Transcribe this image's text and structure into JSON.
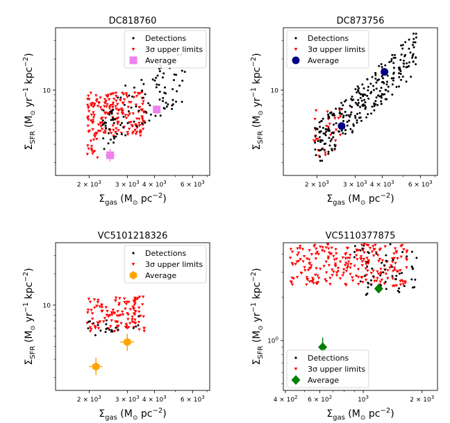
{
  "figure": {
    "x_axis_label": "Σ_gas (M_⊙ pc^-2)",
    "y_axis_label": "Σ_SFR (M_⊙ yr^-1 kpc^-2)"
  },
  "legend_labels": {
    "detections": "Detections",
    "upper_limits": "3σ upper limits",
    "average": "Average"
  },
  "chart_data": [
    {
      "type": "scatter",
      "title": "DC818760",
      "xscale": "log",
      "yscale": "log",
      "xlim": [
        1400,
        7200
      ],
      "ylim": [
        1.5,
        40
      ],
      "xticks": [
        {
          "v": 2000,
          "m": "2",
          "e": "3"
        },
        {
          "v": 3000,
          "m": "3",
          "e": "3"
        },
        {
          "v": 4000,
          "m": "4",
          "e": "3"
        },
        {
          "v": 6000,
          "m": "6",
          "e": "3"
        }
      ],
      "yticks": [
        {
          "v": 10,
          "label": "10"
        }
      ],
      "legend_loc": "top-right",
      "legend_order": [
        "detections",
        "upper_limits",
        "average"
      ],
      "average_color": "#ee82ee",
      "average_marker": "square",
      "averages": [
        {
          "x": 4100,
          "y": 6.5,
          "xerr": 120,
          "yerr_lo": 0.6,
          "yerr_hi": 0.6
        },
        {
          "x": 2500,
          "y": 2.35,
          "xerr": 120,
          "yerr_lo": 0.3,
          "yerr_hi": 0.35
        }
      ],
      "detections": {
        "n": 110,
        "xmin": 2300,
        "xmax": 5600,
        "slope": 2.6,
        "y_at_xmin": 4.6,
        "y_at_xmax": 14,
        "scatter": 0.25
      },
      "upper_limits": {
        "n": 190,
        "xmin": 1960,
        "xmax": 3600,
        "ymin": 3.6,
        "ymax": 9.5,
        "tail_n": 18,
        "tail_ymin": 2.2,
        "tail_ymax": 4
      }
    },
    {
      "type": "scatter",
      "title": "DC873756",
      "xscale": "log",
      "yscale": "log",
      "xlim": [
        1400,
        7200
      ],
      "ylim": [
        1.5,
        40
      ],
      "xticks": [
        {
          "v": 2000,
          "m": "2",
          "e": "3"
        },
        {
          "v": 3000,
          "m": "3",
          "e": "3"
        },
        {
          "v": 4000,
          "m": "4",
          "e": "3"
        },
        {
          "v": 6000,
          "m": "6",
          "e": "3"
        }
      ],
      "yticks": [
        {
          "v": 10,
          "label": "10"
        }
      ],
      "legend_loc": "top-left",
      "legend_order": [
        "detections",
        "upper_limits",
        "average"
      ],
      "average_color": "#000080",
      "average_marker": "circle",
      "averages": [
        {
          "x": 2600,
          "y": 4.5,
          "xerr": 80,
          "yerr_lo": 0.25,
          "yerr_hi": 0.25
        },
        {
          "x": 4100,
          "y": 15,
          "xerr": 120,
          "yerr_lo": 0.8,
          "yerr_hi": 0.8
        }
      ],
      "detections": {
        "n": 290,
        "xmin": 1950,
        "xmax": 5800,
        "slope": 1.75,
        "y_at_xmin": 2.8,
        "y_at_xmax": 24,
        "scatter": 0.2
      },
      "upper_limits": {
        "n": 30,
        "xmin": 1900,
        "xmax": 2600,
        "ymin": 2.2,
        "ymax": 6.5,
        "tail_n": 0,
        "tail_ymin": 0,
        "tail_ymax": 0
      }
    },
    {
      "type": "scatter",
      "title": "VC5101218326",
      "xscale": "log",
      "yscale": "log",
      "xlim": [
        1400,
        7200
      ],
      "ylim": [
        1.5,
        40
      ],
      "xticks": [
        {
          "v": 2000,
          "m": "2",
          "e": "3"
        },
        {
          "v": 3000,
          "m": "3",
          "e": "3"
        },
        {
          "v": 4000,
          "m": "4",
          "e": "3"
        },
        {
          "v": 6000,
          "m": "6",
          "e": "3"
        }
      ],
      "yticks": [
        {
          "v": 10,
          "label": "10"
        }
      ],
      "legend_loc": "top-right",
      "legend_order": [
        "detections",
        "upper_limits",
        "average"
      ],
      "average_color": "#ffa500",
      "average_marker": "hexagon",
      "averages": [
        {
          "x": 2150,
          "y": 2.55,
          "xerr": 150,
          "yerr_lo": 0.45,
          "yerr_hi": 0.55
        },
        {
          "x": 3000,
          "y": 4.4,
          "xerr": 220,
          "yerr_lo": 0.8,
          "yerr_hi": 0.9
        }
      ],
      "detections": {
        "n": 22,
        "xmin": 1950,
        "xmax": 3400,
        "slope": 0.4,
        "y_at_xmin": 6.0,
        "y_at_xmax": 7.0,
        "scatter": 0.08
      },
      "upper_limits": {
        "n": 120,
        "xmin": 1950,
        "xmax": 3600,
        "ymin": 5.5,
        "ymax": 12,
        "tail_n": 0,
        "tail_ymin": 0,
        "tail_ymax": 0
      }
    },
    {
      "type": "scatter",
      "title": "VC5110377875",
      "xscale": "log",
      "yscale": "log",
      "xlim": [
        390,
        2400
      ],
      "ylim": [
        0.45,
        4.8
      ],
      "xticks": [
        {
          "v": 400,
          "m": "4",
          "e": "2"
        },
        {
          "v": 600,
          "m": "6",
          "e": "2"
        },
        {
          "v": 1000,
          "label": "10",
          "e": "3"
        },
        {
          "v": 2000,
          "m": "2",
          "e": "3"
        }
      ],
      "yticks": [
        {
          "v": 1,
          "label": "10",
          "e": "0"
        }
      ],
      "legend_loc": "bottom-left",
      "legend_order": [
        "detections",
        "upper_limits",
        "average"
      ],
      "average_color": "#008000",
      "average_marker": "diamond",
      "averages": [
        {
          "x": 620,
          "y": 0.9,
          "xerr": 20,
          "yerr_lo": 0.12,
          "yerr_hi": 0.15
        },
        {
          "x": 1200,
          "y": 2.3,
          "xerr": 30,
          "yerr_lo": 0.1,
          "yerr_hi": 0.1
        }
      ],
      "detections": {
        "n": 60,
        "xmin": 900,
        "xmax": 1900,
        "slope": 0.3,
        "y_at_xmin": 3.0,
        "y_at_xmax": 3.4,
        "scatter": 0.18
      },
      "upper_limits": {
        "n": 240,
        "xmin": 420,
        "xmax": 1700,
        "ymin": 2.4,
        "ymax": 4.7,
        "tail_n": 0,
        "tail_ymin": 0,
        "tail_ymax": 0
      }
    }
  ]
}
